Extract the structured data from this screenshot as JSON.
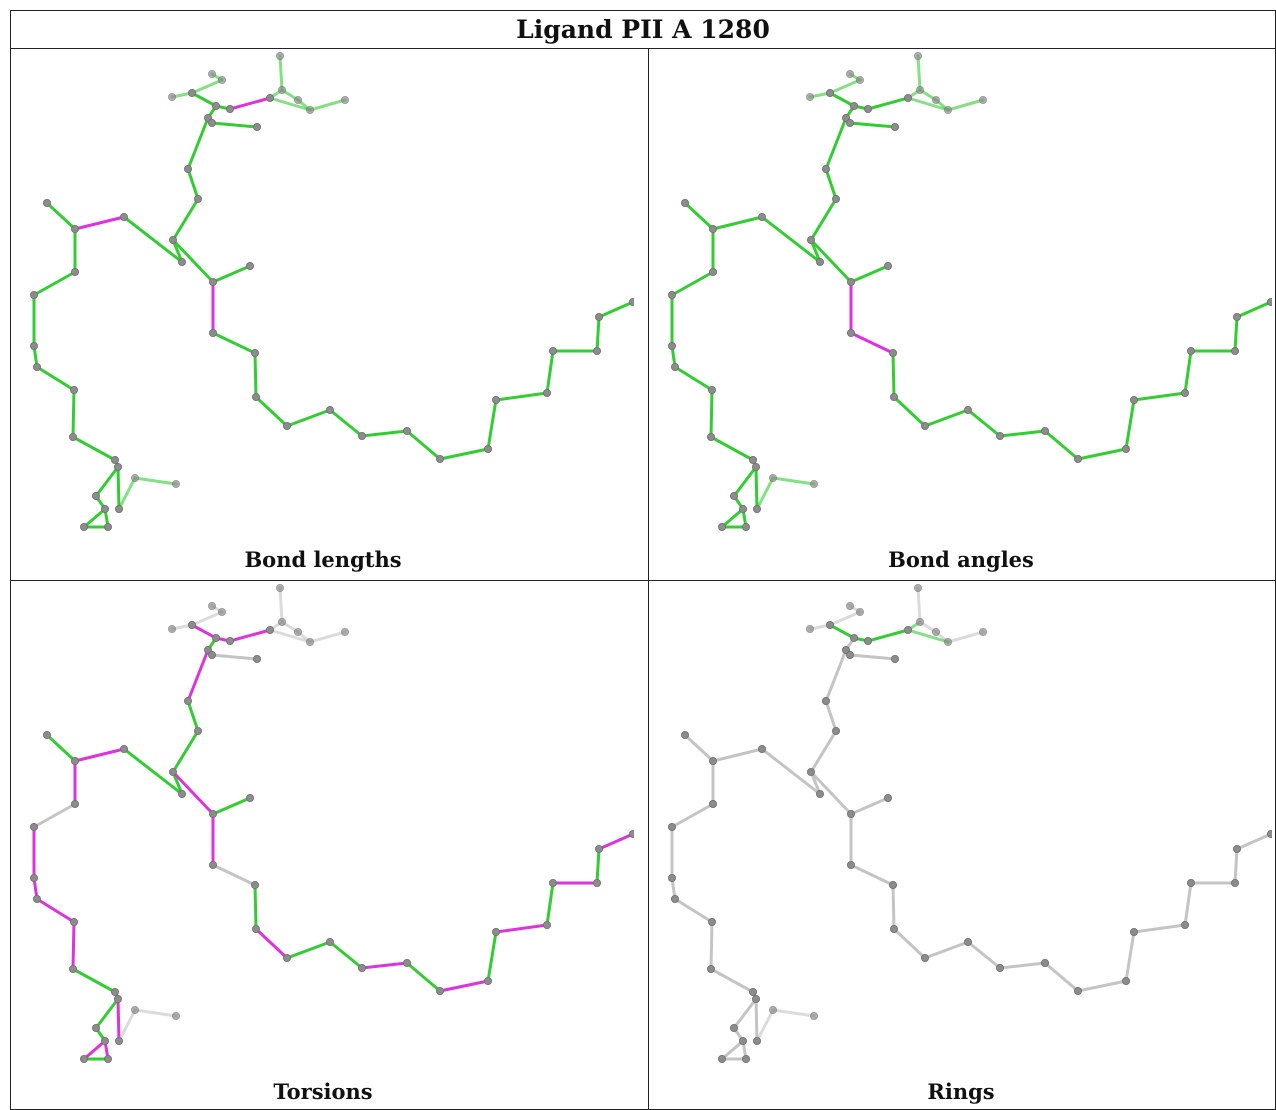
{
  "title": "Ligand PII A 1280",
  "panels": [
    {
      "caption": "Bond lengths"
    },
    {
      "caption": "Bond angles"
    },
    {
      "caption": "Torsions"
    },
    {
      "caption": "Rings"
    }
  ],
  "colors": {
    "ok": "#33cc33",
    "outlier": "#dd33dd",
    "neutral": "#c4c4c4",
    "atom": "#8c8c8c",
    "border": "#222222"
  }
}
